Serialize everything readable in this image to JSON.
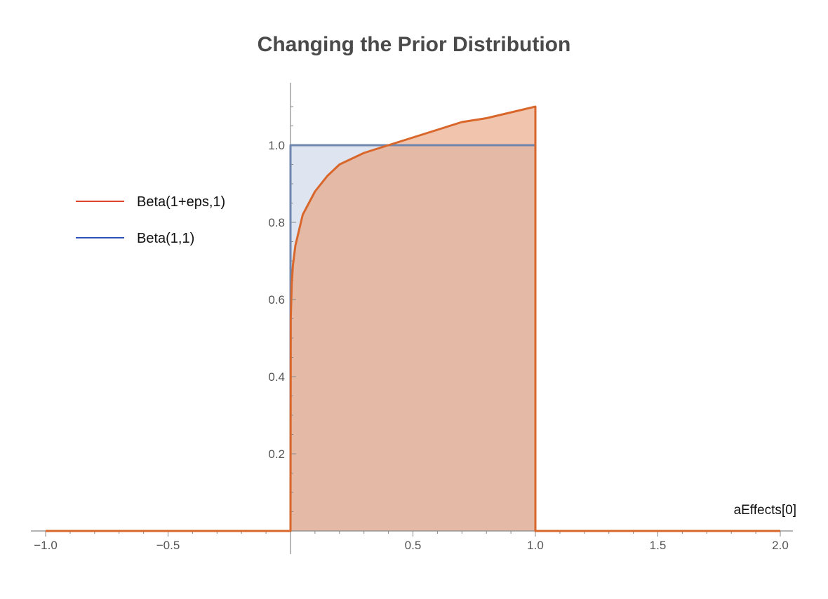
{
  "chart_data": {
    "type": "area",
    "title": "Changing the Prior Distribution",
    "xlabel": "aEffects[0]",
    "ylabel": "",
    "xlim": [
      -1.0,
      2.0
    ],
    "ylim": [
      0,
      1.13
    ],
    "x_ticks": [
      "−1.0",
      "−0.5",
      "0.5",
      "1.0",
      "1.5",
      "2.0"
    ],
    "x_tick_values": [
      -1.0,
      -0.5,
      0.5,
      1.0,
      1.5,
      2.0
    ],
    "y_ticks": [
      "0.2",
      "0.4",
      "0.6",
      "0.8",
      "1.0"
    ],
    "y_tick_values": [
      0.2,
      0.4,
      0.6,
      0.8,
      1.0
    ],
    "grid": false,
    "legend_position": "left",
    "series": [
      {
        "name": "Beta(1+eps,1)",
        "legend_color": "#e0442e",
        "line_color": "#d9672b",
        "fill_color": "#e8a07a",
        "x": [
          -1.0,
          0.0,
          0.001,
          0.005,
          0.01,
          0.02,
          0.05,
          0.1,
          0.15,
          0.2,
          0.3,
          0.4,
          0.5,
          0.6,
          0.7,
          0.8,
          0.9,
          1.0,
          1.0,
          2.0
        ],
        "y": [
          0.0,
          0.0,
          0.55,
          0.64,
          0.69,
          0.74,
          0.82,
          0.88,
          0.92,
          0.95,
          0.98,
          1.0,
          1.02,
          1.04,
          1.06,
          1.07,
          1.085,
          1.1,
          0.0,
          0.0
        ]
      },
      {
        "name": "Beta(1,1)",
        "legend_color": "#2f4fb8",
        "line_color": "#6f86ad",
        "fill_color": "#c8d3e6",
        "x": [
          -1.0,
          0.0,
          0.0,
          1.0,
          1.0,
          2.0
        ],
        "y": [
          0.0,
          0.0,
          1.0,
          1.0,
          0.0,
          0.0
        ]
      }
    ]
  }
}
